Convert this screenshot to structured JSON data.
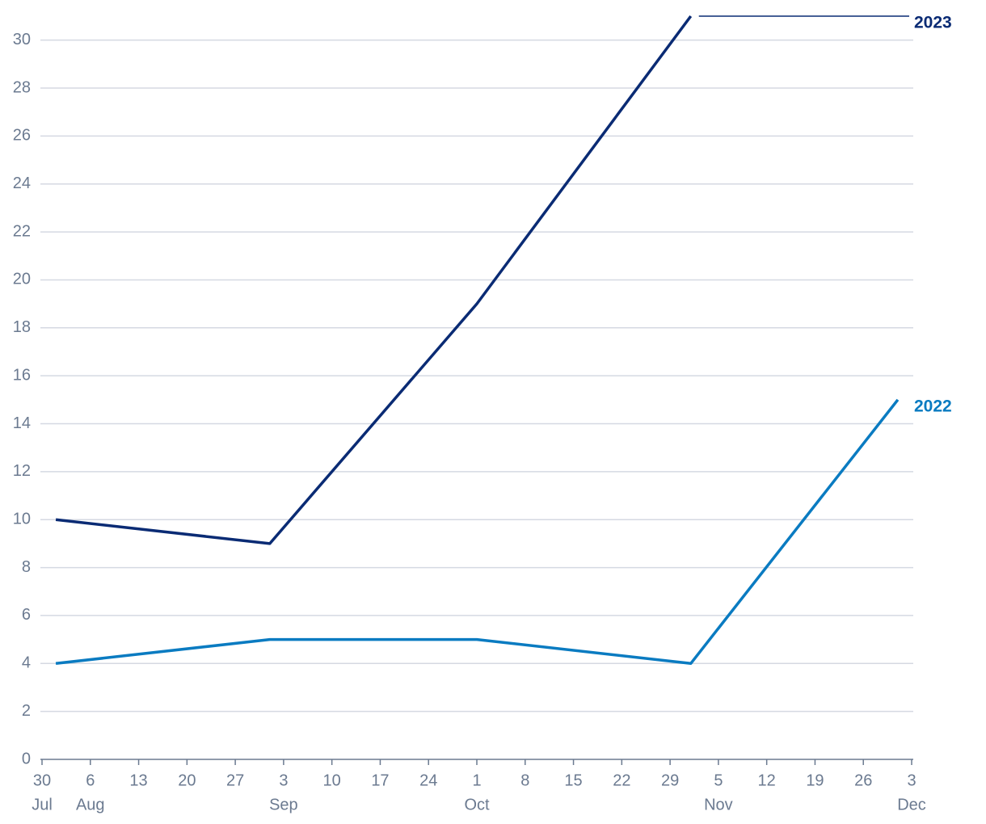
{
  "chart_data": {
    "type": "line",
    "x": [
      "08-01",
      "09-01",
      "10-01",
      "11-01",
      "12-01"
    ],
    "series": [
      {
        "name": "2023",
        "color": "#0a2b74",
        "values": [
          10,
          9,
          19,
          31,
          null
        ]
      },
      {
        "name": "2022",
        "color": "#0a7bc1",
        "values": [
          4,
          5,
          5,
          4,
          15
        ]
      }
    ],
    "xlim": [
      "07-30",
      "12-03"
    ],
    "xticks": [
      {
        "value": "07-30",
        "label": "30",
        "sublabel": "Jul"
      },
      {
        "value": "08-06",
        "label": "6",
        "sublabel": "Aug"
      },
      {
        "value": "08-13",
        "label": "13"
      },
      {
        "value": "08-20",
        "label": "20"
      },
      {
        "value": "08-27",
        "label": "27"
      },
      {
        "value": "09-03",
        "label": "3",
        "sublabel": "Sep"
      },
      {
        "value": "09-10",
        "label": "10"
      },
      {
        "value": "09-17",
        "label": "17"
      },
      {
        "value": "09-24",
        "label": "24"
      },
      {
        "value": "10-01",
        "label": "1",
        "sublabel": "Oct"
      },
      {
        "value": "10-08",
        "label": "8"
      },
      {
        "value": "10-15",
        "label": "15"
      },
      {
        "value": "10-22",
        "label": "22"
      },
      {
        "value": "10-29",
        "label": "29"
      },
      {
        "value": "11-05",
        "label": "5",
        "sublabel": "Nov"
      },
      {
        "value": "11-12",
        "label": "12"
      },
      {
        "value": "11-19",
        "label": "19"
      },
      {
        "value": "11-26",
        "label": "26"
      },
      {
        "value": "12-03",
        "label": "3",
        "sublabel": "Dec"
      }
    ],
    "ylim": [
      0,
      31
    ],
    "yticks": [
      0,
      2,
      4,
      6,
      8,
      10,
      12,
      14,
      16,
      18,
      20,
      22,
      24,
      26,
      28,
      30
    ],
    "grid": true
  }
}
